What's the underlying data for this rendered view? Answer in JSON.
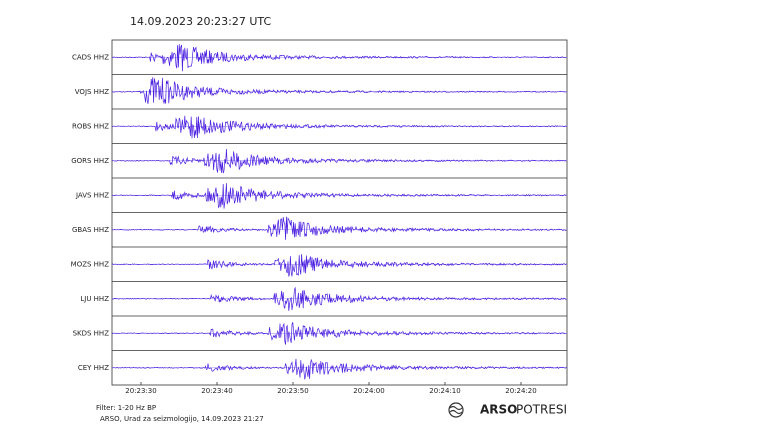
{
  "header": {
    "title": "14.09.2023  20:23:27 UTC"
  },
  "stations": [
    "CADS HHZ",
    "VOJS HHZ",
    "ROBS HHZ",
    "GORS HHZ",
    "JAVS HHZ",
    "GBAS HHZ",
    "MOZS HHZ",
    "LJU HHZ",
    "SKDS HHZ",
    "CEY HHZ"
  ],
  "time_axis": {
    "ticks": [
      "20:23:30",
      "20:23:40",
      "20:23:50",
      "20:24:00",
      "20:24:10",
      "20:24:20"
    ]
  },
  "footer": {
    "filter": "Filter: 1-20 Hz BP",
    "source": "ARSO, Urad za seizmologijo, 14.09.2023  21:27",
    "logo_bold": "ARSO",
    "logo_light": "POTRESI"
  }
}
